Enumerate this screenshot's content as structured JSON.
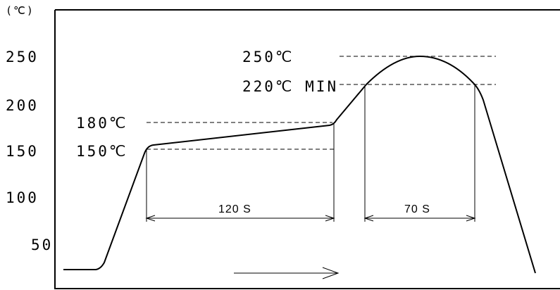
{
  "chart_data": {
    "type": "line",
    "title": "",
    "xlabel": "",
    "ylabel": "",
    "y_unit_label": "(℃)",
    "y_ticks": [
      {
        "value": 250,
        "label": "250"
      },
      {
        "value": 200,
        "label": "200"
      },
      {
        "value": 150,
        "label": "150"
      },
      {
        "value": 100,
        "label": "100"
      },
      {
        "value": 50,
        "label": "50"
      }
    ],
    "ylim": [
      0,
      300
    ],
    "grid": false,
    "profile": {
      "x": [
        0,
        22,
        27,
        47,
        49,
        64,
        66,
        86,
        88,
        106,
        108,
        136
      ],
      "y": [
        20,
        20,
        25,
        145,
        150,
        150,
        155,
        175,
        180,
        220,
        220,
        20
      ],
      "plateau_to_peak": "soak 150–180℃ 120 s, reflow above 220℃ 70 s, peak 250℃"
    },
    "annotations": {
      "t180": "180℃",
      "t150": "150℃",
      "t250": "250℃",
      "t220": "220℃ MIN",
      "soak_time": "120 S",
      "reflow_time": "70 S"
    },
    "direction_arrow": "right"
  }
}
